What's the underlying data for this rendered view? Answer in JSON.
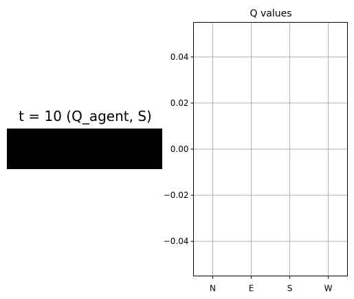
{
  "left_panel": {
    "title": "t = 10 (Q_agent, S)",
    "image_color": "#000000"
  },
  "chart_data": {
    "type": "scatter",
    "title": "Q values",
    "xlabel": "",
    "ylabel": "",
    "categories": [
      "N",
      "E",
      "S",
      "W"
    ],
    "xlim": [
      -0.5,
      3.5
    ],
    "ylim": [
      -0.055,
      0.055
    ],
    "yticks": [
      -0.04,
      -0.02,
      0.0,
      0.02,
      0.04
    ],
    "ytick_labels": [
      "−0.04",
      "−0.02",
      "0.00",
      "0.02",
      "0.04"
    ],
    "series": [],
    "grid": true,
    "grid_color": "#b0b0b0"
  }
}
